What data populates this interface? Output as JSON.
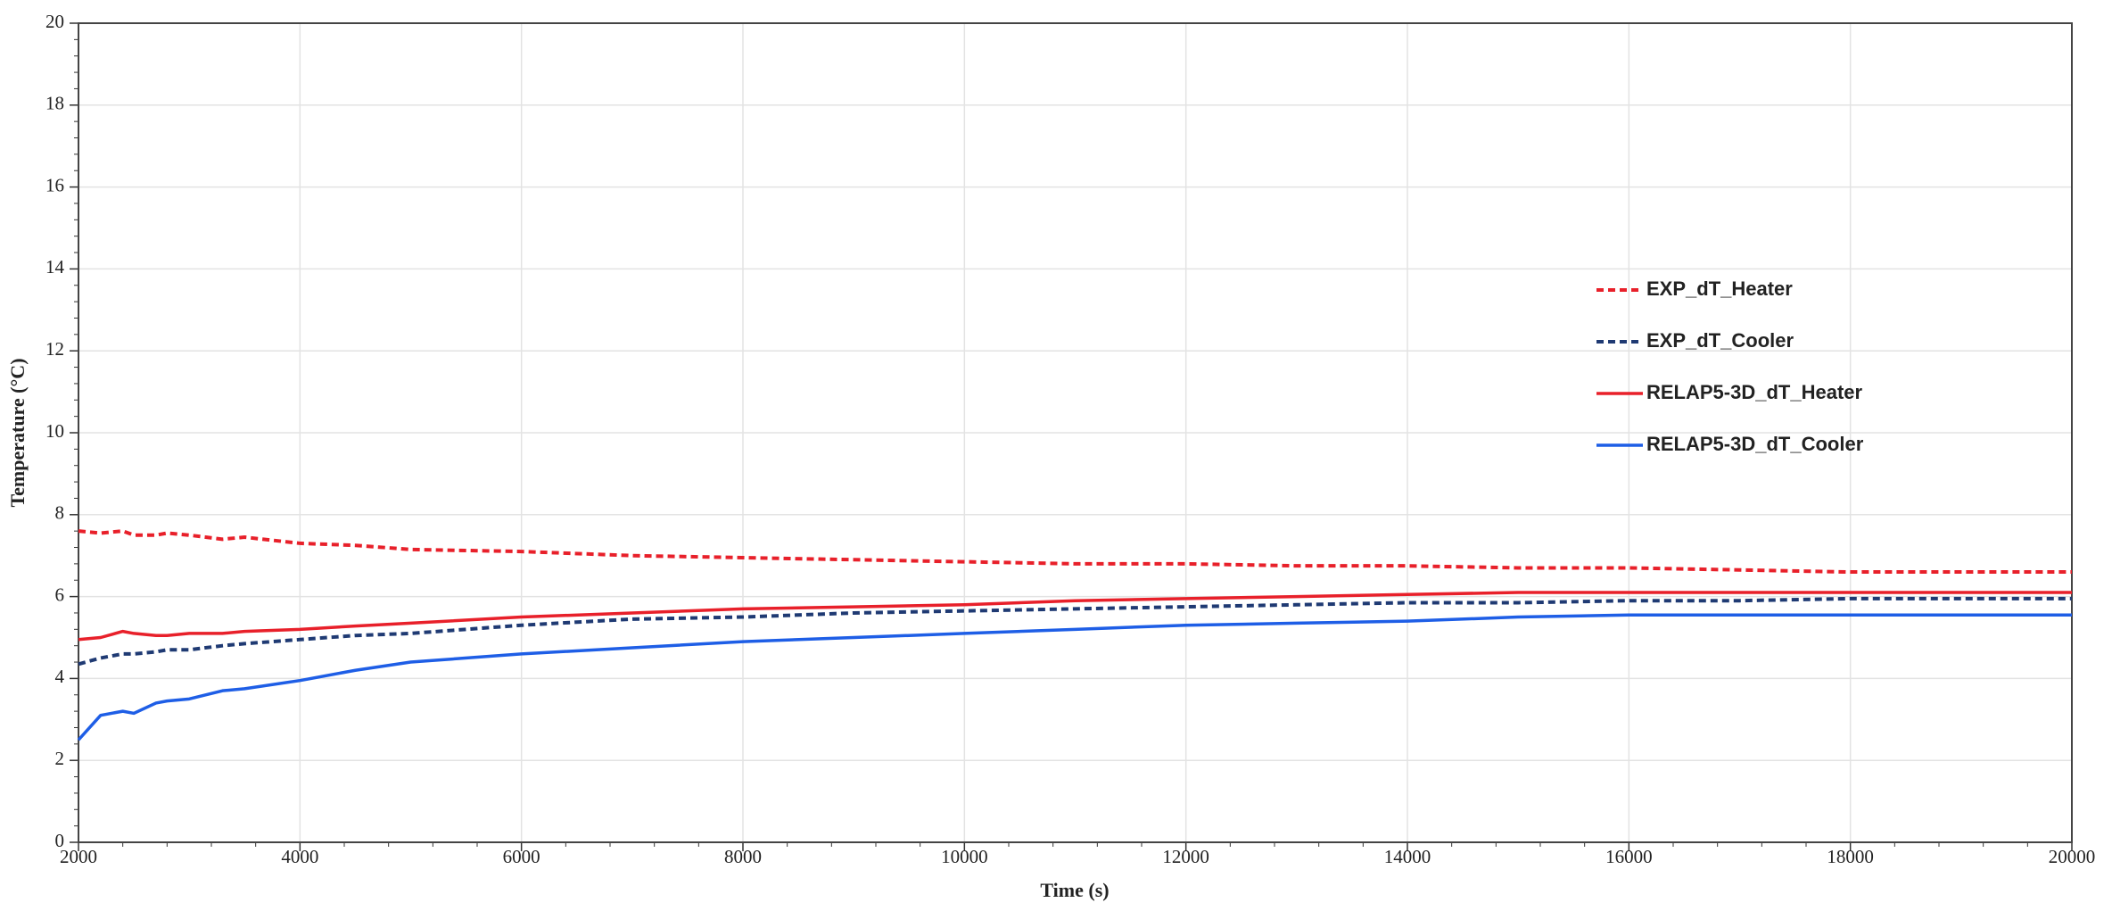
{
  "chart_data": {
    "type": "line",
    "xlabel": "Time (s)",
    "ylabel": "Temperature (°C)",
    "x": [
      2000,
      2200,
      2400,
      2500,
      2700,
      2800,
      3000,
      3300,
      3500,
      4000,
      4500,
      5000,
      6000,
      7000,
      8000,
      9000,
      10000,
      11000,
      12000,
      13000,
      14000,
      15000,
      16000,
      17000,
      18000,
      19000,
      20000
    ],
    "series": [
      {
        "name": "EXP_dT_Heater",
        "color": "#e8202a",
        "dashed": true,
        "values": [
          7.6,
          7.55,
          7.6,
          7.5,
          7.5,
          7.55,
          7.5,
          7.4,
          7.45,
          7.3,
          7.25,
          7.15,
          7.1,
          7.0,
          6.95,
          6.9,
          6.85,
          6.8,
          6.8,
          6.75,
          6.75,
          6.7,
          6.7,
          6.65,
          6.6,
          6.6,
          6.6
        ]
      },
      {
        "name": "EXP_dT_Cooler",
        "color": "#1f3a73",
        "dashed": true,
        "values": [
          4.35,
          4.5,
          4.6,
          4.6,
          4.65,
          4.7,
          4.7,
          4.8,
          4.85,
          4.95,
          5.05,
          5.1,
          5.3,
          5.45,
          5.5,
          5.6,
          5.65,
          5.7,
          5.75,
          5.8,
          5.85,
          5.85,
          5.9,
          5.9,
          5.95,
          5.95,
          5.95
        ]
      },
      {
        "name": "RELAP5-3D_dT_Heater",
        "color": "#e8202a",
        "dashed": false,
        "values": [
          4.95,
          5.0,
          5.15,
          5.1,
          5.05,
          5.05,
          5.1,
          5.1,
          5.15,
          5.2,
          5.28,
          5.35,
          5.5,
          5.6,
          5.7,
          5.75,
          5.8,
          5.9,
          5.95,
          6.0,
          6.05,
          6.1,
          6.1,
          6.1,
          6.1,
          6.1,
          6.1
        ]
      },
      {
        "name": "RELAP5-3D_dT_Cooler",
        "color": "#1e5ee6",
        "dashed": false,
        "values": [
          2.5,
          3.1,
          3.2,
          3.15,
          3.4,
          3.45,
          3.5,
          3.7,
          3.75,
          3.95,
          4.2,
          4.4,
          4.6,
          4.75,
          4.9,
          5.0,
          5.1,
          5.2,
          5.3,
          5.35,
          5.4,
          5.5,
          5.55,
          5.55,
          5.55,
          5.55,
          5.55
        ]
      }
    ],
    "xlim": [
      2000,
      20000
    ],
    "xticks": [
      2000,
      4000,
      6000,
      8000,
      10000,
      12000,
      14000,
      16000,
      18000,
      20000
    ],
    "ylim": [
      0,
      20
    ],
    "yticks": [
      0,
      2,
      4,
      6,
      8,
      10,
      12,
      14,
      16,
      18,
      20
    ],
    "grid": true,
    "legend": "center right"
  }
}
